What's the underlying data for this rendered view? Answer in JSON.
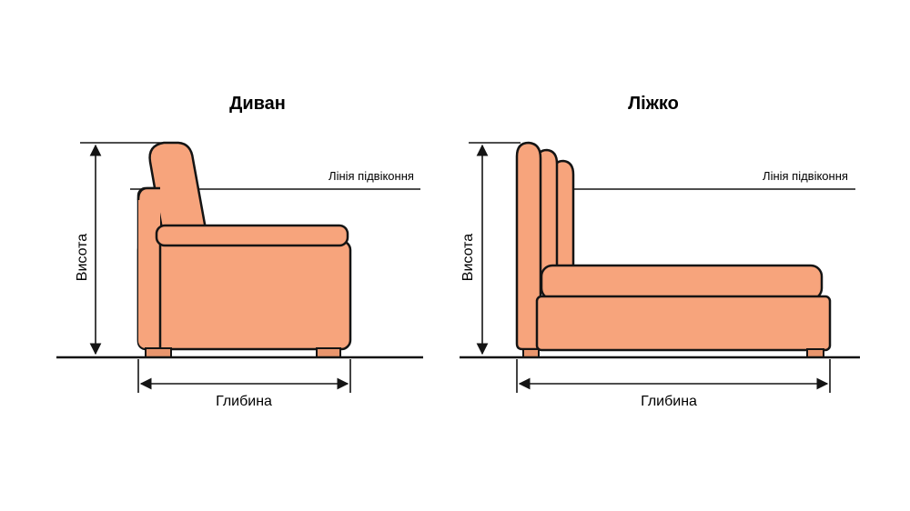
{
  "sofa": {
    "title": "Диван",
    "window_line": "Лінія підвіконня",
    "height": "Висота",
    "depth": "Глибина"
  },
  "bed": {
    "title": "Ліжко",
    "window_line": "Лінія підвіконня",
    "height": "Висота",
    "depth": "Глибина"
  }
}
